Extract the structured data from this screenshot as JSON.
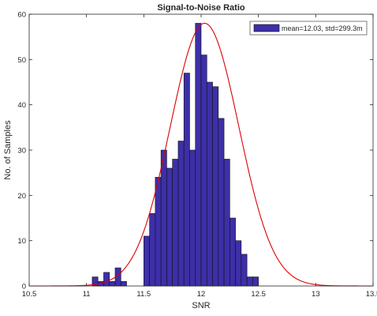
{
  "chart_data": {
    "type": "bar",
    "title": "Signal-to-Noise Ratio",
    "xlabel": "SNR",
    "ylabel": "No. of Samples",
    "xlim": [
      10.5,
      13.5
    ],
    "ylim": [
      0,
      60
    ],
    "xticks": [
      "10.5",
      "11",
      "11.5",
      "12",
      "12.5",
      "13",
      "13.5"
    ],
    "yticks": [
      "0",
      "10",
      "20",
      "30",
      "40",
      "50",
      "60"
    ],
    "grid": false,
    "legend_position": "top-right",
    "bin_width": 0.05,
    "bins": [
      {
        "x": 11.05,
        "count": 2
      },
      {
        "x": 11.1,
        "count": 1
      },
      {
        "x": 11.15,
        "count": 3
      },
      {
        "x": 11.2,
        "count": 1
      },
      {
        "x": 11.25,
        "count": 4
      },
      {
        "x": 11.3,
        "count": 1
      },
      {
        "x": 11.35,
        "count": 0
      },
      {
        "x": 11.4,
        "count": 0
      },
      {
        "x": 11.45,
        "count": 0
      },
      {
        "x": 11.5,
        "count": 11
      },
      {
        "x": 11.55,
        "count": 16
      },
      {
        "x": 11.6,
        "count": 24
      },
      {
        "x": 11.65,
        "count": 30
      },
      {
        "x": 11.7,
        "count": 26
      },
      {
        "x": 11.75,
        "count": 28
      },
      {
        "x": 11.8,
        "count": 32
      },
      {
        "x": 11.85,
        "count": 47
      },
      {
        "x": 11.9,
        "count": 30
      },
      {
        "x": 11.95,
        "count": 58
      },
      {
        "x": 12.0,
        "count": 51
      },
      {
        "x": 12.05,
        "count": 45
      },
      {
        "x": 12.1,
        "count": 44
      },
      {
        "x": 12.15,
        "count": 37
      },
      {
        "x": 12.2,
        "count": 28
      },
      {
        "x": 12.25,
        "count": 15
      },
      {
        "x": 12.3,
        "count": 10
      },
      {
        "x": 12.35,
        "count": 7
      },
      {
        "x": 12.4,
        "count": 2
      },
      {
        "x": 12.45,
        "count": 2
      }
    ],
    "fit": {
      "type": "normal",
      "mean": 12.03,
      "std": 0.2993,
      "peak": 58,
      "color": "#dd0000"
    },
    "bar_color": "#3d2fa8",
    "bar_edge_color": "#111111",
    "legend_label": "mean=12.03, std=299.3m"
  }
}
